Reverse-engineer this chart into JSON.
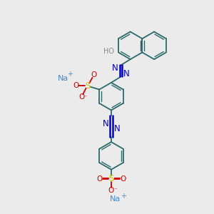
{
  "bg_color": "#ebebeb",
  "bond_color": "#2d6b6b",
  "azo_color": "#0000cc",
  "sulfonate_color": "#cc0000",
  "sulfur_color": "#cccc00",
  "na_color": "#4488cc",
  "ho_color": "#888888",
  "o_color": "#cc0000",
  "figsize": [
    3.0,
    3.0
  ],
  "dpi": 100,
  "xlim": [
    0,
    10
  ],
  "ylim": [
    0,
    10
  ]
}
